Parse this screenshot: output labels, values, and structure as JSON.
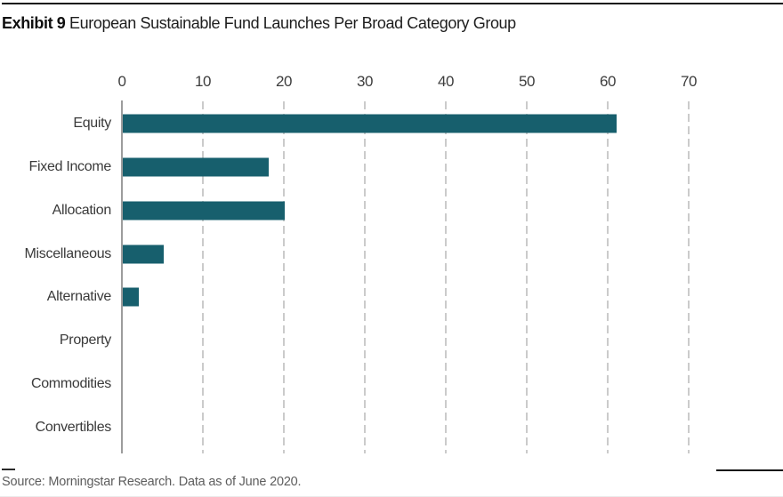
{
  "exhibit": {
    "label": "Exhibit 9",
    "title": "European Sustainable Fund Launches Per Broad Category Group"
  },
  "source_line": "Source: Morningstar Research. Data as of June 2020.",
  "chart_data": {
    "type": "bar",
    "orientation": "horizontal",
    "title": "European Sustainable Fund Launches Per Broad Category Group",
    "categories": [
      "Equity",
      "Fixed Income",
      "Allocation",
      "Miscellaneous",
      "Alternative",
      "Property",
      "Commodities",
      "Convertibles"
    ],
    "values": [
      61,
      18,
      20,
      5,
      2,
      0,
      0,
      0
    ],
    "x_ticks": [
      0,
      10,
      20,
      30,
      40,
      50,
      60,
      70
    ],
    "xlim": [
      0,
      70
    ],
    "xlabel": "",
    "ylabel": "",
    "grid": "vertical-dashed",
    "legend": "none",
    "bar_color": "#175f6d",
    "gridline_color": "#cbcbcb",
    "axis_color": "#9c9c9c"
  }
}
